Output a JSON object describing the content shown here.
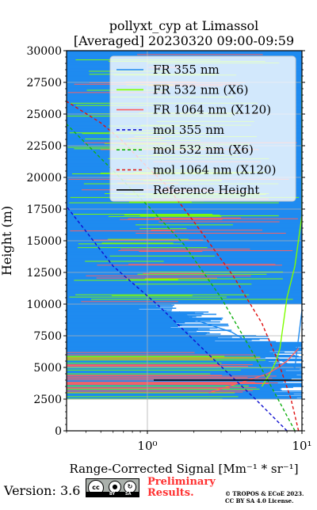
{
  "chart_data": {
    "type": "line",
    "title": "pollyxt_cyp at Limassol",
    "subtitle": "[Averaged] 20230320 09:00-09:59",
    "xlabel": "Range-Corrected Signal [Mm⁻¹ * sr⁻¹]",
    "ylabel": "Height (m)",
    "xscale": "log",
    "xlim": [
      0.3,
      10
    ],
    "ylim": [
      0,
      30000
    ],
    "xticks": [
      1,
      10
    ],
    "xtick_labels": [
      "10⁰",
      "10¹"
    ],
    "yticks": [
      0,
      2500,
      5000,
      7500,
      10000,
      12500,
      15000,
      17500,
      20000,
      22500,
      25000,
      27500,
      30000
    ],
    "ytick_labels": [
      "0",
      "2500",
      "5000",
      "7500",
      "10000",
      "12500",
      "15000",
      "17500",
      "20000",
      "22500",
      "25000",
      "27500",
      "30000"
    ],
    "grid": true,
    "legend_position": "top-right",
    "series": [
      {
        "name": "FR 355 nm",
        "color": "#1f8bf0",
        "style": "solid",
        "x": [
          1.6,
          2.2,
          3.5,
          4.5,
          6,
          7.5,
          9,
          10,
          10,
          10,
          10,
          10,
          10
        ],
        "y": [
          9400,
          8600,
          7800,
          7000,
          6200,
          5500,
          5000,
          9500,
          12500,
          17500,
          22500,
          27500,
          30000
        ]
      },
      {
        "name": "FR 532 nm (X6)",
        "color": "#7fff00",
        "style": "solid",
        "x": [
          5.5,
          6.2,
          6.8,
          7.2,
          8,
          9,
          10,
          10,
          10
        ],
        "y": [
          3500,
          4500,
          5500,
          6500,
          10500,
          13000,
          17000,
          24000,
          28000
        ]
      },
      {
        "name": "FR 1064 nm (X120)",
        "color": "#ff6060",
        "style": "solid",
        "x": [
          2.5,
          4.5,
          6,
          7,
          8,
          9.5
        ],
        "y": [
          3000,
          4000,
          4500,
          5000,
          5500,
          6500
        ]
      },
      {
        "name": "mol 355 nm",
        "color": "#1010d0",
        "style": "dashed",
        "x": [
          8,
          5,
          2.5,
          1.2,
          0.6,
          0.3
        ],
        "y": [
          0,
          2500,
          6000,
          9800,
          13000,
          17700
        ]
      },
      {
        "name": "mol 532 nm (X6)",
        "color": "#10b010",
        "style": "dashed",
        "x": [
          9,
          7,
          5,
          3,
          1.7,
          1,
          0.5,
          0.3
        ],
        "y": [
          0,
          2500,
          5800,
          10500,
          14800,
          17800,
          21500,
          24200
        ]
      },
      {
        "name": "mol 1064 nm (X120)",
        "color": "#e01010",
        "style": "dashed",
        "x": [
          9.5,
          8.5,
          7,
          5.5,
          3.6,
          2,
          1.3,
          1,
          0.7,
          0.5,
          0.3
        ],
        "y": [
          0,
          2500,
          5500,
          8500,
          12200,
          16500,
          19500,
          20800,
          22800,
          24300,
          26000
        ]
      },
      {
        "name": "Reference Height",
        "color": "#000000",
        "style": "solid",
        "x": [
          1.1,
          10
        ],
        "y": [
          4000,
          4000
        ]
      }
    ]
  },
  "footer": {
    "version": "Version: 3.6",
    "preliminary_line1": "Preliminary",
    "preliminary_line2": "Results.",
    "copyright_line1": "© TROPOS & ECoE 2023.",
    "copyright_line2": "CC BY SA 4.0 License.",
    "badge": {
      "cc": "cc",
      "by": "BY",
      "sa": "SA"
    }
  }
}
